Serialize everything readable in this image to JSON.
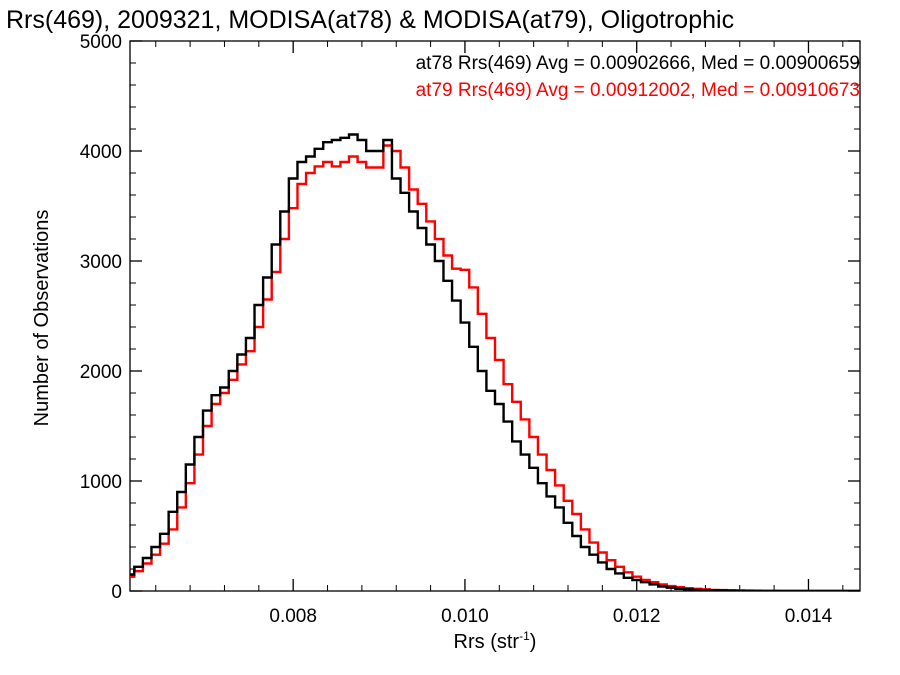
{
  "chart_data": {
    "type": "line",
    "title": "Rrs(469), 2009321, MODISA(at78) & MODISA(at79), Oligotrophic",
    "xlabel": "Rrs (str",
    "xlabel_sup": "-1",
    "xlabel_close": ")",
    "ylabel": "Number of Observations",
    "xlim": [
      0.0061,
      0.0146
    ],
    "ylim": [
      0,
      5000
    ],
    "x_ticks": [
      0.008,
      0.01,
      0.012,
      0.014
    ],
    "x_tick_labels": [
      "0.008",
      "0.010",
      "0.012",
      "0.014"
    ],
    "y_ticks": [
      0,
      1000,
      2000,
      3000,
      4000,
      5000
    ],
    "y_tick_labels": [
      "0",
      "1000",
      "2000",
      "3000",
      "4000",
      "5000"
    ],
    "legend_position": "top-right",
    "grid": false,
    "series": [
      {
        "name": "at78",
        "color": "#000000",
        "stats": "at78 Rrs(469) Avg = 0.00902666, Med = 0.00900659",
        "x": [
          0.0061,
          0.0062,
          0.0063,
          0.0064,
          0.0065,
          0.0066,
          0.0067,
          0.0068,
          0.0069,
          0.007,
          0.0071,
          0.0072,
          0.0073,
          0.0074,
          0.0075,
          0.0076,
          0.0077,
          0.0078,
          0.0079,
          0.008,
          0.0081,
          0.0082,
          0.0083,
          0.0084,
          0.0085,
          0.0086,
          0.0087,
          0.0088,
          0.0089,
          0.009,
          0.0091,
          0.0092,
          0.0093,
          0.0094,
          0.0095,
          0.0096,
          0.0097,
          0.0098,
          0.0099,
          0.01,
          0.0101,
          0.0102,
          0.0103,
          0.0104,
          0.0105,
          0.0106,
          0.0107,
          0.0108,
          0.0109,
          0.011,
          0.0111,
          0.0112,
          0.0113,
          0.0114,
          0.0115,
          0.0116,
          0.0117,
          0.0118,
          0.0119,
          0.012,
          0.0121,
          0.0122,
          0.0123,
          0.0124,
          0.0125,
          0.0126,
          0.0127,
          0.0128,
          0.0129,
          0.013,
          0.0131,
          0.0132,
          0.0133,
          0.0134,
          0.0135,
          0.0136,
          0.0137,
          0.0138,
          0.0139,
          0.014,
          0.0141,
          0.0142,
          0.0143,
          0.0144,
          0.0145,
          0.0146
        ],
        "y": [
          150,
          220,
          300,
          400,
          520,
          720,
          900,
          1150,
          1400,
          1640,
          1780,
          1850,
          2000,
          2150,
          2300,
          2600,
          2850,
          3150,
          3450,
          3750,
          3900,
          3950,
          4020,
          4080,
          4100,
          4120,
          4150,
          4100,
          4000,
          4000,
          4100,
          3750,
          3620,
          3450,
          3300,
          3150,
          3000,
          2820,
          2640,
          2440,
          2220,
          2000,
          1820,
          1700,
          1540,
          1360,
          1240,
          1120,
          980,
          860,
          760,
          620,
          500,
          400,
          330,
          260,
          200,
          160,
          120,
          100,
          80,
          60,
          40,
          30,
          20,
          15,
          10,
          8,
          6,
          5,
          4,
          3,
          2,
          2,
          1,
          1,
          1,
          0,
          0,
          0,
          0,
          0,
          0,
          0,
          0,
          0
        ]
      },
      {
        "name": "at79",
        "color": "#ff0000",
        "stats": "at79 Rrs(469) Avg = 0.00912002, Med = 0.00910673",
        "x": [
          0.0061,
          0.0062,
          0.0063,
          0.0064,
          0.0065,
          0.0066,
          0.0067,
          0.0068,
          0.0069,
          0.007,
          0.0071,
          0.0072,
          0.0073,
          0.0074,
          0.0075,
          0.0076,
          0.0077,
          0.0078,
          0.0079,
          0.008,
          0.0081,
          0.0082,
          0.0083,
          0.0084,
          0.0085,
          0.0086,
          0.0087,
          0.0088,
          0.0089,
          0.009,
          0.0091,
          0.0092,
          0.0093,
          0.0094,
          0.0095,
          0.0096,
          0.0097,
          0.0098,
          0.0099,
          0.01,
          0.0101,
          0.0102,
          0.0103,
          0.0104,
          0.0105,
          0.0106,
          0.0107,
          0.0108,
          0.0109,
          0.011,
          0.0111,
          0.0112,
          0.0113,
          0.0114,
          0.0115,
          0.0116,
          0.0117,
          0.0118,
          0.0119,
          0.012,
          0.0121,
          0.0122,
          0.0123,
          0.0124,
          0.0125,
          0.0126,
          0.0127,
          0.0128,
          0.0129,
          0.013,
          0.0131,
          0.0132,
          0.0133,
          0.0134,
          0.0135,
          0.0136,
          0.0137,
          0.0138,
          0.0139,
          0.014,
          0.0141,
          0.0142,
          0.0143,
          0.0144,
          0.0145,
          0.0146
        ],
        "y": [
          130,
          180,
          250,
          330,
          430,
          560,
          760,
          980,
          1240,
          1500,
          1700,
          1800,
          1920,
          2060,
          2180,
          2400,
          2650,
          2900,
          3200,
          3480,
          3700,
          3800,
          3860,
          3900,
          3860,
          3900,
          3950,
          3900,
          3850,
          3850,
          4050,
          4000,
          3850,
          3650,
          3520,
          3360,
          3200,
          3050,
          2930,
          2920,
          2760,
          2520,
          2300,
          2100,
          1880,
          1720,
          1560,
          1400,
          1240,
          1100,
          960,
          820,
          700,
          560,
          440,
          350,
          280,
          220,
          170,
          130,
          100,
          80,
          60,
          45,
          35,
          25,
          20,
          15,
          10,
          8,
          6,
          5,
          4,
          3,
          2,
          2,
          1,
          1,
          1,
          0,
          0,
          0,
          0,
          0,
          0,
          0
        ]
      }
    ]
  }
}
